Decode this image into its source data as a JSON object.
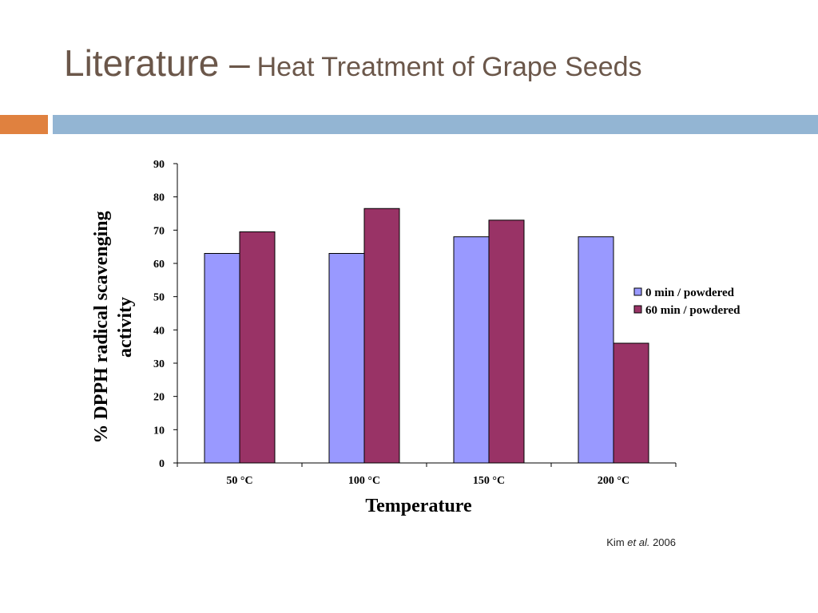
{
  "slide": {
    "title_main": "Literature –",
    "title_sub": "Heat Treatment of Grape Seeds",
    "citation_author": "Kim ",
    "citation_etal": "et al.",
    "citation_year": " 2006"
  },
  "colors": {
    "accent_orange": "#e0813f",
    "accent_blue": "#93b5d3",
    "title": "#6b574a"
  },
  "chart_data": {
    "type": "bar",
    "categories": [
      "50 °C",
      "100 °C",
      "150 °C",
      "200 °C"
    ],
    "series": [
      {
        "name": "0 min / powdered",
        "values": [
          63,
          63,
          68,
          68
        ],
        "color": "#9999ff"
      },
      {
        "name": "60 min / powdered",
        "values": [
          69.5,
          76.5,
          73,
          36
        ],
        "color": "#993366"
      }
    ],
    "xlabel": "Temperature",
    "ylabel_line1": "% DPPH radical scavenging",
    "ylabel_line2": "activity",
    "ylim": [
      0,
      90
    ],
    "yticks": [
      0,
      10,
      20,
      30,
      40,
      50,
      60,
      70,
      80,
      90
    ],
    "grid": false,
    "legend": "right"
  }
}
